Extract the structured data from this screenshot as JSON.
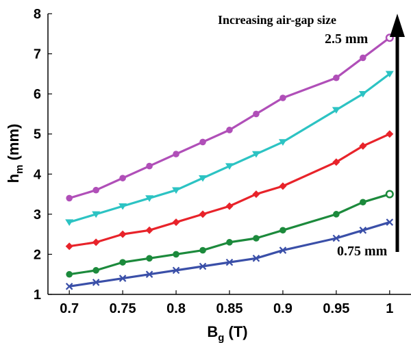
{
  "chart_data": {
    "type": "line",
    "title": "",
    "xlabel": {
      "main": "B",
      "sub": "g",
      "unit": " (T)"
    },
    "ylabel": {
      "main": "h",
      "sub": "m",
      "unit": " (mm)"
    },
    "xlim": [
      0.68,
      1.02
    ],
    "ylim": [
      1,
      8
    ],
    "x_ticks": [
      0.7,
      0.75,
      0.8,
      0.85,
      0.9,
      0.95,
      1
    ],
    "x_tick_labels": [
      "0.7",
      "0.75",
      "0.8",
      "0.85",
      "0.9",
      "0.95",
      "1"
    ],
    "y_ticks": [
      1,
      2,
      3,
      4,
      5,
      6,
      7,
      8
    ],
    "y_tick_labels": [
      "1",
      "2",
      "3",
      "4",
      "5",
      "6",
      "7",
      "8"
    ],
    "grid": false,
    "x": [
      0.7,
      0.725,
      0.75,
      0.775,
      0.8,
      0.825,
      0.85,
      0.875,
      0.9,
      0.95,
      0.975,
      1.0
    ],
    "series": [
      {
        "color": "#3a4fa8",
        "marker": "x",
        "values": [
          1.2,
          1.3,
          1.4,
          1.5,
          1.6,
          1.7,
          1.8,
          1.9,
          2.1,
          2.4,
          2.6,
          2.8
        ]
      },
      {
        "color": "#1c8a3c",
        "marker": "circle",
        "values": [
          1.5,
          1.6,
          1.8,
          1.9,
          2.0,
          2.1,
          2.3,
          2.4,
          2.6,
          3.0,
          3.3,
          3.5
        ]
      },
      {
        "color": "#e8232a",
        "marker": "diamond",
        "values": [
          2.2,
          2.3,
          2.5,
          2.6,
          2.8,
          3.0,
          3.2,
          3.5,
          3.7,
          4.3,
          4.7,
          5.0
        ]
      },
      {
        "color": "#2cc3c3",
        "marker": "triangle-down",
        "values": [
          2.8,
          3.0,
          3.2,
          3.4,
          3.6,
          3.9,
          4.2,
          4.5,
          4.8,
          5.6,
          6.0,
          6.5
        ]
      },
      {
        "color": "#b04fb8",
        "marker": "circle",
        "values": [
          3.4,
          3.6,
          3.9,
          4.2,
          4.5,
          4.8,
          5.1,
          5.5,
          5.9,
          6.4,
          6.9,
          7.4
        ]
      }
    ],
    "annotations": {
      "arrow_label": "Increasing air-gap size",
      "top_label": "2.5 mm",
      "bottom_label": "0.75 mm"
    }
  }
}
